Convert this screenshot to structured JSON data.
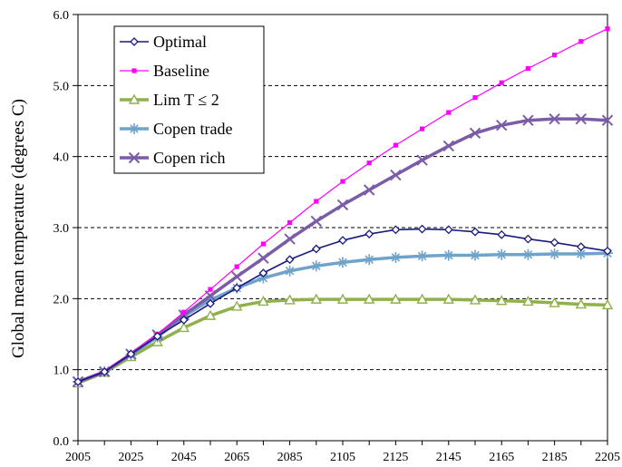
{
  "chart_data": {
    "type": "line",
    "title": "",
    "xlabel": "",
    "ylabel": "Global mean temperature (degrees C)",
    "xlim": [
      2005,
      2205
    ],
    "ylim": [
      0,
      6
    ],
    "grid": "horizontal-dashed",
    "legend_position": "top-left",
    "x": [
      2005,
      2015,
      2025,
      2035,
      2045,
      2055,
      2065,
      2075,
      2085,
      2095,
      2105,
      2115,
      2125,
      2135,
      2145,
      2155,
      2165,
      2175,
      2185,
      2195,
      2205
    ],
    "x_ticks": [
      "2005",
      "2025",
      "2045",
      "2065",
      "2085",
      "2105",
      "2125",
      "2145",
      "2165",
      "2185",
      "2205"
    ],
    "y_ticks": [
      "0.0",
      "1.0",
      "2.0",
      "3.0",
      "4.0",
      "5.0",
      "6.0"
    ],
    "series": [
      {
        "name": "Optimal",
        "color": "#1a1a80",
        "marker": "diamond",
        "values": [
          0.83,
          0.97,
          1.22,
          1.47,
          1.7,
          1.93,
          2.15,
          2.36,
          2.55,
          2.7,
          2.82,
          2.91,
          2.97,
          2.98,
          2.97,
          2.94,
          2.9,
          2.84,
          2.79,
          2.73,
          2.67
        ]
      },
      {
        "name": "Baseline",
        "color": "#ff00ff",
        "marker": "square",
        "values": [
          0.83,
          0.98,
          1.23,
          1.5,
          1.81,
          2.13,
          2.45,
          2.77,
          3.07,
          3.37,
          3.65,
          3.91,
          4.16,
          4.39,
          4.62,
          4.83,
          5.04,
          5.24,
          5.43,
          5.62,
          5.8
        ]
      },
      {
        "name": "Lim T ≤ 2",
        "color": "#8fb04a",
        "marker": "triangle",
        "values": [
          0.81,
          0.96,
          1.18,
          1.39,
          1.59,
          1.76,
          1.89,
          1.96,
          1.98,
          1.99,
          1.99,
          1.99,
          1.99,
          1.99,
          1.99,
          1.98,
          1.97,
          1.96,
          1.94,
          1.92,
          1.91
        ]
      },
      {
        "name": "Copen trade",
        "color": "#6fa3c9",
        "marker": "asterisk",
        "values": [
          0.83,
          0.97,
          1.21,
          1.46,
          1.75,
          1.98,
          2.15,
          2.29,
          2.39,
          2.46,
          2.51,
          2.55,
          2.58,
          2.6,
          2.61,
          2.61,
          2.62,
          2.62,
          2.63,
          2.63,
          2.64
        ]
      },
      {
        "name": "Copen rich",
        "color": "#7a5ca7",
        "marker": "x",
        "values": [
          0.83,
          0.97,
          1.22,
          1.49,
          1.77,
          2.04,
          2.31,
          2.57,
          2.84,
          3.09,
          3.32,
          3.53,
          3.74,
          3.95,
          4.15,
          4.33,
          4.44,
          4.51,
          4.53,
          4.53,
          4.51
        ]
      }
    ]
  }
}
